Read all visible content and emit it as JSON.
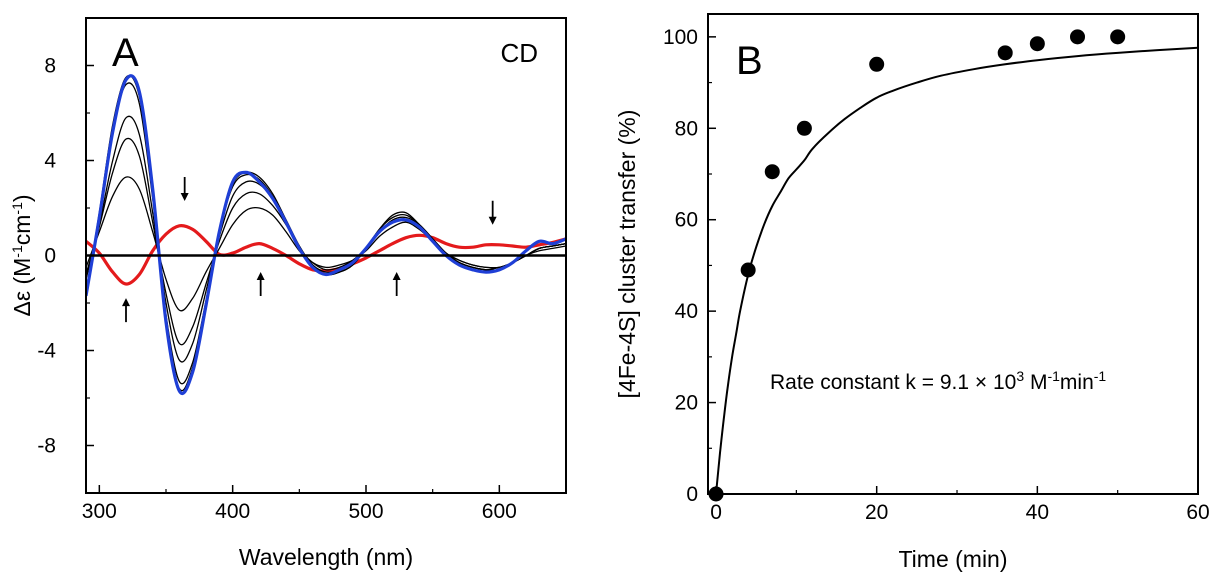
{
  "chart_data": [
    {
      "panel": "A",
      "type": "line",
      "title": "",
      "panel_label": "A",
      "corner_label": "CD",
      "xlabel": "Wavelength (nm)",
      "ylabel_main": "Δε (M",
      "ylabel_sup1": "-1",
      "ylabel_mid": "cm",
      "ylabel_sup2": "-1",
      "ylabel_end": ")",
      "xlim": [
        290,
        650
      ],
      "ylim": [
        -10,
        10
      ],
      "xticks": [
        300,
        400,
        500,
        600
      ],
      "xtick_labels": [
        "300",
        "400",
        "500",
        "600"
      ],
      "yticks": [
        -8,
        -4,
        0,
        4,
        8
      ],
      "ytick_labels": [
        "-8",
        "-4",
        "0",
        "4",
        "8"
      ],
      "zero_line": true,
      "grid": false,
      "arrows": [
        {
          "x": 364,
          "y": 2.8,
          "direction": "down"
        },
        {
          "x": 320,
          "y": -2.3,
          "direction": "up"
        },
        {
          "x": 421,
          "y": -1.2,
          "direction": "up"
        },
        {
          "x": 523,
          "y": -1.2,
          "direction": "up"
        },
        {
          "x": 595,
          "y": 1.8,
          "direction": "down"
        }
      ],
      "series": [
        {
          "color": "#e41a1c",
          "x": [
            290,
            300,
            310,
            320,
            330,
            340,
            350,
            360,
            370,
            380,
            390,
            400,
            410,
            420,
            430,
            440,
            450,
            460,
            470,
            480,
            490,
            500,
            510,
            520,
            530,
            540,
            550,
            560,
            570,
            580,
            590,
            600,
            610,
            620,
            630,
            640,
            650
          ],
          "y": [
            0.6,
            0.1,
            -0.7,
            -1.2,
            -0.8,
            0.2,
            0.9,
            1.25,
            1.1,
            0.6,
            0.05,
            0.1,
            0.35,
            0.5,
            0.3,
            0.0,
            -0.35,
            -0.6,
            -0.65,
            -0.55,
            -0.35,
            -0.1,
            0.2,
            0.5,
            0.75,
            0.85,
            0.75,
            0.5,
            0.35,
            0.35,
            0.45,
            0.45,
            0.4,
            0.35,
            0.45,
            0.55,
            0.7
          ]
        },
        {
          "color": "#000000",
          "x": [
            290,
            300,
            310,
            320,
            330,
            340,
            350,
            360,
            370,
            380,
            390,
            400,
            410,
            420,
            430,
            440,
            450,
            460,
            470,
            480,
            490,
            500,
            510,
            520,
            530,
            540,
            550,
            560,
            570,
            580,
            590,
            600,
            610,
            620,
            630,
            640,
            650
          ],
          "y": [
            -0.5,
            1.0,
            2.5,
            3.3,
            2.8,
            1.0,
            -1.0,
            -2.3,
            -1.8,
            -0.7,
            0.3,
            1.3,
            1.9,
            2.0,
            1.7,
            1.0,
            0.2,
            -0.3,
            -0.5,
            -0.4,
            -0.2,
            0.2,
            0.8,
            1.2,
            1.4,
            1.1,
            0.6,
            0.1,
            -0.2,
            -0.4,
            -0.5,
            -0.5,
            -0.3,
            0.0,
            0.2,
            0.3,
            0.4
          ]
        },
        {
          "color": "#000000",
          "x": [
            290,
            300,
            310,
            320,
            330,
            340,
            350,
            360,
            370,
            380,
            390,
            400,
            410,
            420,
            430,
            440,
            450,
            460,
            470,
            480,
            490,
            500,
            510,
            520,
            530,
            540,
            550,
            560,
            570,
            580,
            590,
            600,
            610,
            620,
            630,
            640,
            650
          ],
          "y": [
            -0.8,
            1.2,
            3.5,
            4.9,
            4.2,
            1.4,
            -1.6,
            -3.7,
            -3.0,
            -1.2,
            0.6,
            2.0,
            2.6,
            2.6,
            2.1,
            1.3,
            0.3,
            -0.3,
            -0.6,
            -0.5,
            -0.2,
            0.3,
            1.0,
            1.4,
            1.5,
            1.2,
            0.6,
            0.1,
            -0.2,
            -0.4,
            -0.5,
            -0.5,
            -0.3,
            0.0,
            0.3,
            0.4,
            0.5
          ]
        },
        {
          "color": "#000000",
          "x": [
            290,
            300,
            310,
            320,
            330,
            340,
            350,
            360,
            370,
            380,
            390,
            400,
            410,
            420,
            430,
            440,
            450,
            460,
            470,
            480,
            490,
            500,
            510,
            520,
            530,
            540,
            550,
            560,
            570,
            580,
            590,
            600,
            610,
            620,
            630,
            640,
            650
          ],
          "y": [
            -1.0,
            1.3,
            4.0,
            5.8,
            5.1,
            1.8,
            -2.0,
            -4.4,
            -3.7,
            -1.5,
            0.8,
            2.5,
            3.1,
            3.0,
            2.4,
            1.4,
            0.3,
            -0.4,
            -0.7,
            -0.6,
            -0.3,
            0.3,
            1.0,
            1.5,
            1.6,
            1.3,
            0.7,
            0.1,
            -0.3,
            -0.5,
            -0.6,
            -0.5,
            -0.3,
            0.0,
            0.3,
            0.4,
            0.5
          ]
        },
        {
          "color": "#000000",
          "x": [
            290,
            300,
            310,
            320,
            330,
            340,
            350,
            360,
            370,
            380,
            390,
            400,
            410,
            420,
            430,
            440,
            450,
            460,
            470,
            480,
            490,
            500,
            510,
            520,
            530,
            540,
            550,
            560,
            570,
            580,
            590,
            600,
            610,
            620,
            630,
            640,
            650
          ],
          "y": [
            -1.5,
            1.7,
            5.3,
            7.2,
            6.4,
            2.4,
            -2.5,
            -5.3,
            -4.5,
            -1.9,
            1.0,
            2.9,
            3.4,
            3.2,
            2.5,
            1.5,
            0.4,
            -0.4,
            -0.8,
            -0.7,
            -0.4,
            0.3,
            1.1,
            1.6,
            1.7,
            1.3,
            0.7,
            0.1,
            -0.3,
            -0.5,
            -0.6,
            -0.6,
            -0.3,
            0.0,
            0.3,
            0.4,
            0.5
          ]
        },
        {
          "color": "#000000",
          "x": [
            290,
            300,
            310,
            320,
            330,
            340,
            350,
            360,
            370,
            380,
            390,
            400,
            410,
            420,
            430,
            440,
            450,
            460,
            470,
            480,
            490,
            500,
            510,
            520,
            530,
            540,
            550,
            560,
            570,
            580,
            590,
            600,
            610,
            620,
            630,
            640,
            650
          ],
          "y": [
            -1.6,
            1.8,
            5.5,
            7.5,
            6.7,
            2.6,
            -2.7,
            -5.6,
            -4.7,
            -2.0,
            1.0,
            3.0,
            3.5,
            3.3,
            2.6,
            1.5,
            0.4,
            -0.5,
            -0.8,
            -0.7,
            -0.4,
            0.3,
            1.1,
            1.7,
            1.8,
            1.3,
            0.7,
            0.1,
            -0.3,
            -0.5,
            -0.6,
            -0.6,
            -0.3,
            0.0,
            0.3,
            0.4,
            0.5
          ]
        },
        {
          "color": "#1f3fd6",
          "x": [
            290,
            300,
            310,
            320,
            330,
            340,
            350,
            360,
            370,
            380,
            390,
            400,
            410,
            420,
            430,
            440,
            450,
            460,
            470,
            480,
            490,
            500,
            510,
            520,
            530,
            540,
            550,
            560,
            570,
            580,
            590,
            600,
            610,
            620,
            630,
            640,
            650
          ],
          "y": [
            -1.7,
            1.6,
            5.2,
            7.4,
            6.9,
            2.8,
            -2.8,
            -5.7,
            -4.9,
            -2.1,
            1.0,
            3.1,
            3.5,
            3.1,
            2.4,
            1.4,
            0.3,
            -0.5,
            -0.8,
            -0.6,
            -0.3,
            0.3,
            1.0,
            1.4,
            1.5,
            1.2,
            0.6,
            0.0,
            -0.4,
            -0.6,
            -0.7,
            -0.6,
            -0.3,
            0.2,
            0.6,
            0.5,
            0.7
          ]
        }
      ]
    },
    {
      "panel": "B",
      "type": "scatter",
      "title": "",
      "panel_label": "B",
      "xlabel": "Time (min)",
      "ylabel": "[4Fe-4S] cluster transfer (%)",
      "xlim": [
        -1,
        60
      ],
      "ylim": [
        0,
        105
      ],
      "xticks": [
        0,
        20,
        40,
        60
      ],
      "xtick_labels": [
        "0",
        "20",
        "40",
        "60"
      ],
      "yticks": [
        0,
        20,
        40,
        60,
        80,
        100
      ],
      "ytick_labels": [
        "0",
        "20",
        "40",
        "60",
        "80",
        "100"
      ],
      "grid": false,
      "annotation_main": "Rate constant k = 9.1 × 10",
      "annotation_sup1": "3",
      "annotation_mid1": " M",
      "annotation_sup2": "-1",
      "annotation_mid2": "min",
      "annotation_sup3": "-1",
      "points": {
        "x": [
          0,
          4,
          7,
          11,
          20,
          36,
          40,
          45,
          50
        ],
        "y": [
          0,
          49,
          70.5,
          80,
          94,
          96.5,
          98.5,
          100,
          100
        ]
      },
      "fit": {
        "x": [
          0,
          0.5,
          1,
          1.5,
          2,
          2.5,
          3,
          4,
          5,
          6,
          7,
          8,
          9,
          10,
          11,
          12,
          14,
          16,
          18,
          20,
          22,
          25,
          28,
          32,
          36,
          40,
          45,
          50,
          55,
          60
        ],
        "y": [
          0,
          9,
          17,
          24,
          30,
          35,
          40,
          48,
          54,
          59,
          63,
          66,
          69,
          71,
          73,
          75.5,
          79,
          82,
          84.5,
          86.7,
          88.2,
          90,
          91.5,
          92.9,
          94,
          94.9,
          95.8,
          96.5,
          97.1,
          97.6
        ]
      }
    }
  ]
}
